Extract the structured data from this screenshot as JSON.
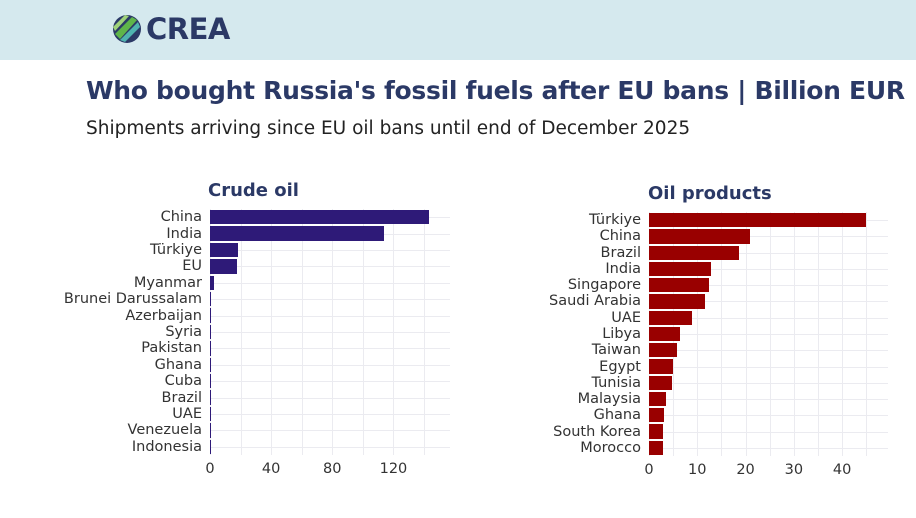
{
  "header": {
    "logo_text": "CREA"
  },
  "title": "Who bought Russia's fossil fuels after EU bans | Billion EUR",
  "subtitle": "Shipments arriving since EU oil bans until end of December 2025",
  "chart_data": [
    {
      "type": "bar",
      "orientation": "horizontal",
      "title": "Crude oil",
      "color": "#2e1a78",
      "categories": [
        "China",
        "India",
        "Türkiye",
        "EU",
        "Myanmar",
        "Brunei Darussalam",
        "Azerbaijan",
        "Syria",
        "Pakistan",
        "Ghana",
        "Cuba",
        "Brazil",
        "UAE",
        "Venezuela",
        "Indonesia"
      ],
      "values": [
        143,
        113.5,
        18,
        17.5,
        2.5,
        0.4,
        0.3,
        0.1,
        0.05,
        0.05,
        0.05,
        0.03,
        0.03,
        0.02,
        0.02
      ],
      "xlim": [
        0,
        157
      ],
      "xticks": [
        0,
        40,
        80,
        120
      ],
      "xlabel": "",
      "ylabel": ""
    },
    {
      "type": "bar",
      "orientation": "horizontal",
      "title": "Oil products",
      "color": "#990000",
      "categories": [
        "Türkiye",
        "China",
        "Brazil",
        "India",
        "Singapore",
        "Saudi Arabia",
        "UAE",
        "Libya",
        "Taiwan",
        "Egypt",
        "Tunisia",
        "Malaysia",
        "Ghana",
        "South Korea",
        "Morocco"
      ],
      "values": [
        45,
        21,
        18.7,
        12.9,
        12.5,
        11.7,
        9,
        6.5,
        5.7,
        4.9,
        4.8,
        3.6,
        3.2,
        2.8,
        2.8
      ],
      "xlim": [
        0,
        49.5
      ],
      "xticks": [
        0,
        10,
        20,
        30,
        40
      ],
      "xlabel": "",
      "ylabel": ""
    }
  ]
}
